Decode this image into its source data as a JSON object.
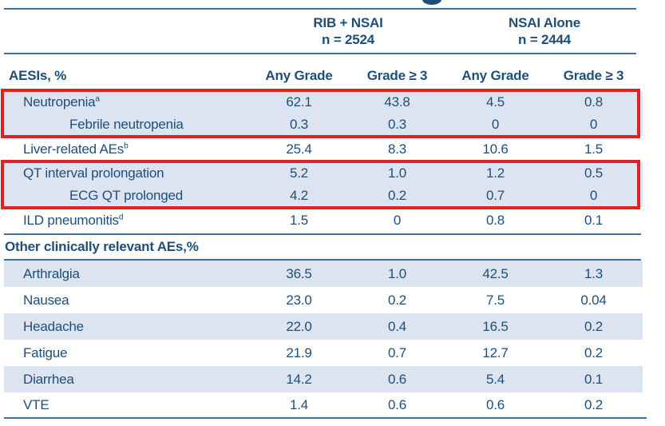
{
  "slide": {
    "cropped_title_fragment": "bottom of a letter from the cropped slide title",
    "groups": [
      {
        "name": "RIB + NSAI",
        "n": "n = 2524"
      },
      {
        "name": "NSAI Alone",
        "n": "n = 2444"
      }
    ],
    "row_header": "AESIs, %",
    "col_headers": [
      "Any Grade",
      "Grade ≥ 3",
      "Any Grade",
      "Grade ≥ 3"
    ],
    "aesi_rows": [
      {
        "label": "Neutropenia",
        "sup": "a",
        "values": [
          "62.1",
          "43.8",
          "4.5",
          "0.8"
        ]
      },
      {
        "label": "Febrile neutropenia",
        "sup": "",
        "values": [
          "0.3",
          "0.3",
          "0",
          "0"
        ]
      },
      {
        "label": "Liver-related AEs",
        "sup": "b",
        "values": [
          "25.4",
          "8.3",
          "10.6",
          "1.5"
        ]
      },
      {
        "label": "QT interval prolongation",
        "sup": "",
        "values": [
          "5.2",
          "1.0",
          "1.2",
          "0.5"
        ]
      },
      {
        "label": "ECG QT prolonged",
        "sup": "",
        "values": [
          "4.2",
          "0.2",
          "0.7",
          "0"
        ]
      },
      {
        "label": "ILD pneumonitis",
        "sup": "d",
        "values": [
          "1.5",
          "0",
          "0.8",
          "0.1"
        ]
      }
    ],
    "section_header": "Other clinically relevant AEs,%",
    "other_rows": [
      {
        "label": "Arthralgia",
        "values": [
          "36.5",
          "1.0",
          "42.5",
          "1.3"
        ]
      },
      {
        "label": "Nausea",
        "values": [
          "23.0",
          "0.2",
          "7.5",
          "0.04"
        ]
      },
      {
        "label": "Headache",
        "values": [
          "22.0",
          "0.4",
          "16.5",
          "0.2"
        ]
      },
      {
        "label": "Fatigue",
        "values": [
          "21.9",
          "0.7",
          "12.7",
          "0.2"
        ]
      },
      {
        "label": "Diarrhea",
        "values": [
          "14.2",
          "0.6",
          "5.4",
          "0.1"
        ]
      },
      {
        "label": "VTE",
        "values": [
          "1.4",
          "0.6",
          "0.6",
          "0.2"
        ]
      }
    ]
  },
  "colors": {
    "text_navy": "#1F4E79",
    "row_shade": "#DCE4F1",
    "line_blue": "#41719C",
    "highlight_red": "#E02320"
  },
  "chart_data": {
    "type": "table",
    "title": "AESIs, % — RIB + NSAI (n = 2524) vs NSAI Alone (n = 2444)",
    "columns": [
      "AESIs, %",
      "RIB + NSAI Any Grade",
      "RIB + NSAI Grade ≥ 3",
      "NSAI Alone Any Grade",
      "NSAI Alone Grade ≥ 3"
    ],
    "rows": [
      [
        "Neutropenia",
        62.1,
        43.8,
        4.5,
        0.8
      ],
      [
        "Febrile neutropenia",
        0.3,
        0.3,
        0,
        0
      ],
      [
        "Liver-related AEs",
        25.4,
        8.3,
        10.6,
        1.5
      ],
      [
        "QT interval prolongation",
        5.2,
        1.0,
        1.2,
        0.5
      ],
      [
        "ECG QT prolonged",
        4.2,
        0.2,
        0.7,
        0
      ],
      [
        "ILD pneumonitis",
        1.5,
        0,
        0.8,
        0.1
      ],
      [
        "Other clinically relevant AEs,%",
        null,
        null,
        null,
        null
      ],
      [
        "Arthralgia",
        36.5,
        1.0,
        42.5,
        1.3
      ],
      [
        "Nausea",
        23.0,
        0.2,
        7.5,
        0.04
      ],
      [
        "Headache",
        22.0,
        0.4,
        16.5,
        0.2
      ],
      [
        "Fatigue",
        21.9,
        0.7,
        12.7,
        0.2
      ],
      [
        "Diarrhea",
        14.2,
        0.6,
        5.4,
        0.1
      ],
      [
        "VTE",
        1.4,
        0.6,
        0.6,
        0.2
      ]
    ],
    "highlighted_row_groups": [
      [
        "Neutropenia",
        "Febrile neutropenia"
      ],
      [
        "QT interval prolongation",
        "ECG QT prolonged"
      ]
    ]
  }
}
